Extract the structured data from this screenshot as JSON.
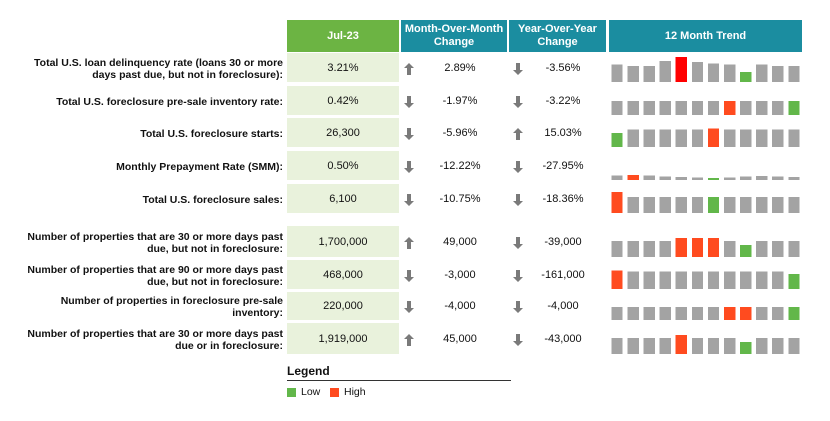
{
  "headers": {
    "date": "Jul-23",
    "mom": "Month-Over-Month Change",
    "yoy": "Year-Over-Year Change",
    "trend": "12 Month Trend"
  },
  "colors": {
    "normal": "#a3a3a3",
    "low": "#62b74a",
    "high": "#ff4b1f",
    "highlight": "#ff0000"
  },
  "legend": {
    "title": "Legend",
    "low": "Low",
    "high": "High"
  },
  "chart_data": {
    "type": "table",
    "rows": [
      {
        "label": "Total U.S. loan delinquency rate (loans 30 or more days past due, but not in foreclosure):",
        "value": "3.21%",
        "mom": "2.89%",
        "mom_dir": "up",
        "yoy": "-3.56%",
        "yoy_dir": "down",
        "trend": [
          0.7,
          0.65,
          0.65,
          0.85,
          1.0,
          0.8,
          0.75,
          0.7,
          0.4,
          0.7,
          0.65,
          0.65
        ],
        "trend_flags": [
          "n",
          "n",
          "n",
          "n",
          "h",
          "n",
          "n",
          "n",
          "l",
          "n",
          "n",
          "n"
        ]
      },
      {
        "label": "Total U.S. foreclosure pre-sale inventory rate:",
        "value": "0.42%",
        "mom": "-1.97%",
        "mom_dir": "down",
        "yoy": "-3.22%",
        "yoy_dir": "down",
        "trend": [
          0.55,
          0.55,
          0.55,
          0.55,
          0.55,
          0.55,
          0.55,
          0.55,
          0.55,
          0.55,
          0.55,
          0.55
        ],
        "trend_flags": [
          "n",
          "n",
          "n",
          "n",
          "n",
          "n",
          "n",
          "h",
          "n",
          "n",
          "n",
          "l"
        ]
      },
      {
        "label": "Total U.S. foreclosure starts:",
        "value": "26,300",
        "mom": "-5.96%",
        "mom_dir": "down",
        "yoy": "15.03%",
        "yoy_dir": "up",
        "trend": [
          0.55,
          0.7,
          0.7,
          0.7,
          0.7,
          0.7,
          0.75,
          0.7,
          0.7,
          0.7,
          0.7,
          0.7
        ],
        "trend_flags": [
          "l",
          "n",
          "n",
          "n",
          "n",
          "n",
          "h",
          "n",
          "n",
          "n",
          "n",
          "n"
        ]
      },
      {
        "label": "Monthly Prepayment Rate (SMM):",
        "value": "0.50%",
        "mom": "-12.22%",
        "mom_dir": "down",
        "yoy": "-27.95%",
        "yoy_dir": "down",
        "trend": [
          0.18,
          0.2,
          0.18,
          0.14,
          0.12,
          0.1,
          0.08,
          0.1,
          0.14,
          0.16,
          0.14,
          0.12
        ],
        "trend_flags": [
          "n",
          "h",
          "n",
          "n",
          "n",
          "n",
          "l",
          "n",
          "n",
          "n",
          "n",
          "n"
        ]
      },
      {
        "label": "Total U.S. foreclosure sales:",
        "value": "6,100",
        "mom": "-10.75%",
        "mom_dir": "down",
        "yoy": "-18.36%",
        "yoy_dir": "down",
        "trend": [
          0.85,
          0.65,
          0.65,
          0.65,
          0.65,
          0.65,
          0.65,
          0.65,
          0.65,
          0.65,
          0.65,
          0.65
        ],
        "trend_flags": [
          "h",
          "n",
          "n",
          "n",
          "n",
          "n",
          "l",
          "n",
          "n",
          "n",
          "n",
          "n"
        ]
      },
      {
        "label": "Number of properties that are 30 or more days past due, but not in foreclosure:",
        "value": "1,700,000",
        "mom": "49,000",
        "mom_dir": "up",
        "yoy": "-39,000",
        "yoy_dir": "down",
        "trend": [
          0.6,
          0.6,
          0.6,
          0.6,
          0.7,
          0.7,
          0.7,
          0.6,
          0.45,
          0.6,
          0.6,
          0.6
        ],
        "trend_flags": [
          "n",
          "n",
          "n",
          "n",
          "h",
          "h",
          "h",
          "n",
          "l",
          "n",
          "n",
          "n"
        ]
      },
      {
        "label": "Number of properties that are 90 or more days past due, but not in foreclosure:",
        "value": "468,000",
        "mom": "-3,000",
        "mom_dir": "down",
        "yoy": "-161,000",
        "yoy_dir": "down",
        "trend": [
          0.75,
          0.7,
          0.7,
          0.7,
          0.7,
          0.7,
          0.7,
          0.7,
          0.7,
          0.7,
          0.7,
          0.6
        ],
        "trend_flags": [
          "h",
          "n",
          "n",
          "n",
          "n",
          "n",
          "n",
          "n",
          "n",
          "n",
          "n",
          "l"
        ]
      },
      {
        "label": "Number of properties in foreclosure pre-sale inventory:",
        "value": "220,000",
        "mom": "-4,000",
        "mom_dir": "down",
        "yoy": "-4,000",
        "yoy_dir": "down",
        "trend": [
          0.55,
          0.55,
          0.55,
          0.55,
          0.55,
          0.55,
          0.55,
          0.55,
          0.55,
          0.55,
          0.55,
          0.55
        ],
        "trend_flags": [
          "n",
          "n",
          "n",
          "n",
          "n",
          "n",
          "n",
          "h",
          "h",
          "n",
          "n",
          "l"
        ]
      },
      {
        "label": "Number of properties that are 30 or more days past due or in foreclosure:",
        "value": "1,919,000",
        "mom": "45,000",
        "mom_dir": "up",
        "yoy": "-43,000",
        "yoy_dir": "down",
        "trend": [
          0.6,
          0.6,
          0.6,
          0.6,
          0.7,
          0.6,
          0.6,
          0.6,
          0.45,
          0.6,
          0.6,
          0.6
        ],
        "trend_flags": [
          "n",
          "n",
          "n",
          "n",
          "h",
          "n",
          "n",
          "n",
          "l",
          "n",
          "n",
          "n"
        ]
      }
    ]
  }
}
